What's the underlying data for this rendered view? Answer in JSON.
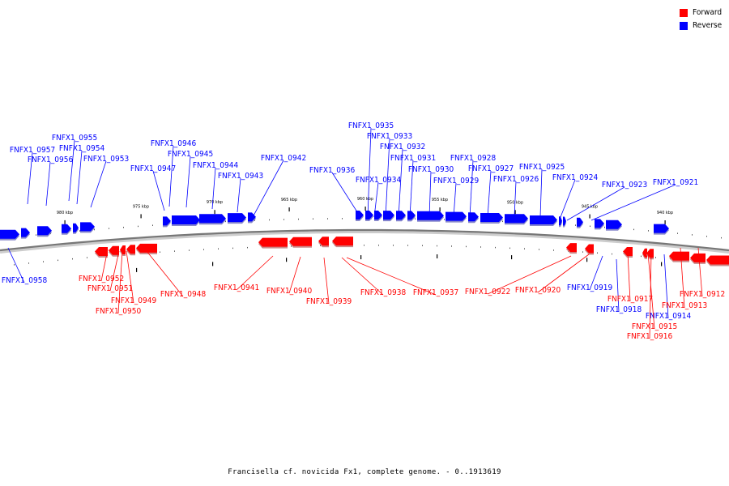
{
  "legend": [
    {
      "label": "Forward",
      "color": "#ff0000"
    },
    {
      "label": "Reverse",
      "color": "#0000ff"
    }
  ],
  "caption": "Francisella cf. novicida Fx1, complete genome. - 0..1913619",
  "scale_labels": [
    "980 kbp",
    "975 kbp",
    "970 kbp",
    "965 kbp",
    "960 kbp",
    "955 kbp",
    "950 kbp",
    "945 kbp",
    "940 kbp"
  ],
  "reverse_genes": [
    "FNFX1_0955",
    "FNFX1_0957",
    "FNFX1_0954",
    "FNFX1_0956",
    "FNFX1_0953",
    "FNFX1_0946",
    "FNFX1_0945",
    "FNFX1_0947",
    "FNFX1_0944",
    "FNFX1_0943",
    "FNFX1_0942",
    "FNFX1_0935",
    "FNFX1_0933",
    "FNFX1_0932",
    "FNFX1_0931",
    "FNFX1_0936",
    "FNFX1_0934",
    "FNFX1_0930",
    "FNFX1_0928",
    "FNFX1_0927",
    "FNFX1_0929",
    "FNFX1_0926",
    "FNFX1_0925",
    "FNFX1_0924",
    "FNFX1_0923",
    "FNFX1_0921",
    "FNFX1_0958",
    "FNFX1_0919",
    "FNFX1_0918",
    "FNFX1_0914"
  ],
  "forward_genes": [
    "FNFX1_0952",
    "FNFX1_0951",
    "FNFX1_0949",
    "FNFX1_0950",
    "FNFX1_0948",
    "FNFX1_0941",
    "FNFX1_0940",
    "FNFX1_0939",
    "FNFX1_0938",
    "FNFX1_0937",
    "FNFX1_0922",
    "FNFX1_0920",
    "FNFX1_0917",
    "FNFX1_0912",
    "FNFX1_0913",
    "FNFX1_0915",
    "FNFX1_0916"
  ]
}
